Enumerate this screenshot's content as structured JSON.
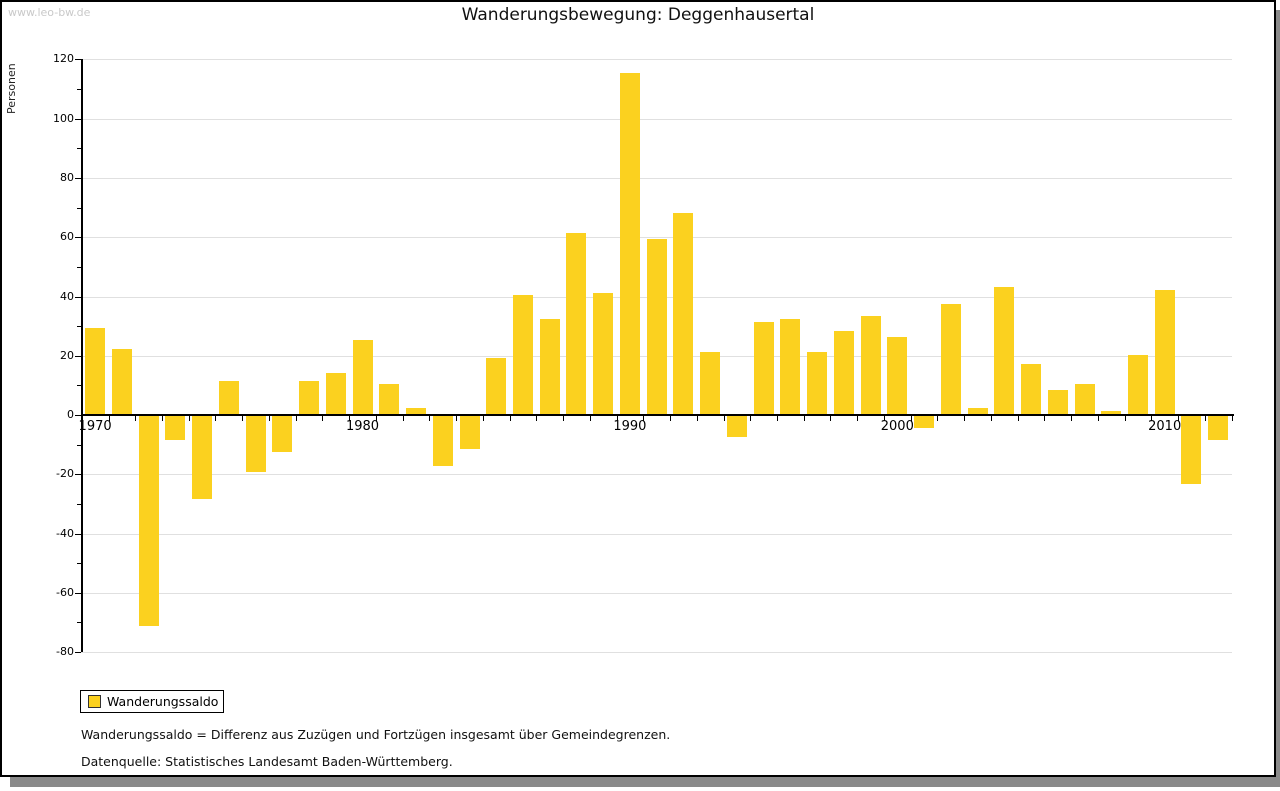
{
  "watermark": "www.leo-bw.de",
  "title": "Wanderungsbewegung: Deggenhausertal",
  "legend": {
    "label": "Wanderungssaldo"
  },
  "footnotes": {
    "definition": "Wanderungssaldo = Differenz aus Zuzügen und Fortzügen insgesamt über Gemeindegrenzen.",
    "source": "Datenquelle: Statistisches Landesamt Baden-Württemberg."
  },
  "colors": {
    "bar": "#FBD11F",
    "grid": "#e0e0e0",
    "axis": "#000000",
    "shadow": "#8a8a8a",
    "watermark": "#c9c9c9"
  },
  "chart_data": {
    "type": "bar",
    "title": "Wanderungsbewegung: Deggenhausertal",
    "xlabel": "",
    "ylabel": "Personen",
    "legend_position": "bottom-left",
    "grid": true,
    "ylim": [
      -80,
      120
    ],
    "ytick_interval": 20,
    "y_minor_interval": 10,
    "x_labeled_ticks": [
      1970,
      1980,
      1990,
      2000,
      2010
    ],
    "categories": [
      1970,
      1971,
      1972,
      1973,
      1974,
      1975,
      1976,
      1977,
      1978,
      1979,
      1980,
      1981,
      1982,
      1983,
      1984,
      1985,
      1986,
      1987,
      1988,
      1989,
      1990,
      1991,
      1992,
      1993,
      1994,
      1995,
      1996,
      1997,
      1998,
      1999,
      2000,
      2001,
      2002,
      2003,
      2004,
      2005,
      2006,
      2007,
      2008,
      2009,
      2010,
      2011,
      2012
    ],
    "series": [
      {
        "name": "Wanderungssaldo",
        "values": [
          29,
          22,
          -71,
          -8,
          -28,
          11,
          -19,
          -12,
          11,
          14,
          25,
          10,
          2,
          -17,
          -11,
          19,
          40,
          32,
          61,
          41,
          115,
          59,
          68,
          21,
          -7,
          31,
          32,
          21,
          28,
          33,
          26,
          -4,
          37,
          2,
          43,
          17,
          8,
          10,
          1,
          20,
          42,
          -23,
          -8
        ]
      }
    ]
  }
}
